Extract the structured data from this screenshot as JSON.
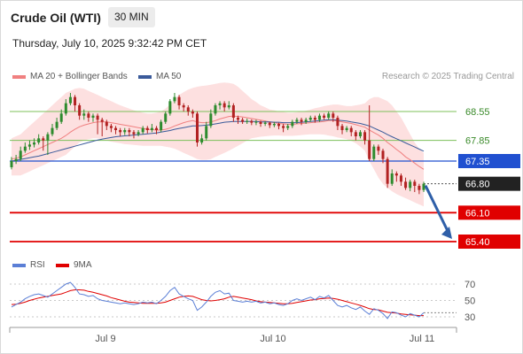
{
  "header": {
    "title": "Crude Oil (WTI)",
    "timeframe": "30 MIN",
    "datetime": "Thursday, July 10, 2025 9:32:42 PM CET"
  },
  "legend": {
    "ma20_label": "MA 20 + Bollinger Bands",
    "ma50_label": "MA 50",
    "credit": "Research © 2025 Trading Central"
  },
  "rsi_legend": {
    "rsi_label": "RSI",
    "ma_label": "9MA"
  },
  "colors": {
    "bull": "#2e8b2e",
    "bear": "#b22222",
    "ma20": "#f08080",
    "ma50": "#3a5a9a",
    "band_fill": "#fde0e0",
    "pivot": "#2050d0",
    "support": "#e00000",
    "resistance": "#7cc05a",
    "arrow": "#2f5fa8",
    "rsi": "#5b7fd6",
    "rsi_ma": "#e00000"
  },
  "chart_data": [
    {
      "type": "candlestick",
      "ylim": [
        65.2,
        69.0
      ],
      "x_ticks": [
        "Jul 9",
        "Jul 10",
        "Jul 11"
      ],
      "levels": [
        {
          "label": "68.55",
          "value": 68.55,
          "kind": "resistance"
        },
        {
          "label": "67.85",
          "value": 67.85,
          "kind": "resistance"
        },
        {
          "label": "67.35",
          "value": 67.35,
          "kind": "pivot"
        },
        {
          "label": "66.80",
          "value": 66.8,
          "kind": "last"
        },
        {
          "label": "66.10",
          "value": 66.1,
          "kind": "support"
        },
        {
          "label": "65.40",
          "value": 65.4,
          "kind": "support"
        }
      ],
      "candles": [
        [
          67.2,
          67.35,
          67.45,
          67.15
        ],
        [
          67.35,
          67.4,
          67.5,
          67.28
        ],
        [
          67.4,
          67.6,
          67.7,
          67.35
        ],
        [
          67.6,
          67.7,
          67.8,
          67.55
        ],
        [
          67.7,
          67.75,
          67.85,
          67.62
        ],
        [
          67.75,
          67.8,
          67.9,
          67.68
        ],
        [
          67.8,
          67.9,
          68.0,
          67.75
        ],
        [
          67.9,
          67.85,
          67.95,
          67.6
        ],
        [
          67.85,
          68.0,
          68.05,
          67.5
        ],
        [
          68.0,
          68.15,
          68.25,
          67.95
        ],
        [
          68.15,
          68.3,
          68.4,
          68.1
        ],
        [
          68.3,
          68.5,
          68.6,
          68.25
        ],
        [
          68.5,
          68.75,
          68.85,
          68.45
        ],
        [
          68.75,
          68.9,
          69.0,
          68.7
        ],
        [
          68.9,
          68.7,
          68.95,
          68.55
        ],
        [
          68.7,
          68.45,
          68.75,
          68.35
        ],
        [
          68.45,
          68.5,
          68.6,
          68.35
        ],
        [
          68.5,
          68.4,
          68.55,
          68.3
        ],
        [
          68.4,
          68.45,
          68.5,
          68.3
        ],
        [
          68.45,
          68.35,
          68.5,
          68.0
        ],
        [
          68.35,
          68.3,
          68.4,
          67.95
        ],
        [
          68.3,
          68.2,
          68.35,
          68.1
        ],
        [
          68.2,
          68.15,
          68.25,
          68.05
        ],
        [
          68.15,
          68.1,
          68.2,
          68.0
        ],
        [
          68.1,
          68.05,
          68.15,
          67.95
        ],
        [
          68.05,
          68.1,
          68.15,
          67.98
        ],
        [
          68.1,
          68.05,
          68.15,
          67.95
        ],
        [
          68.05,
          68.0,
          68.1,
          67.9
        ],
        [
          68.0,
          68.05,
          68.1,
          67.95
        ],
        [
          68.05,
          68.15,
          68.2,
          68.0
        ],
        [
          68.15,
          68.1,
          68.2,
          68.02
        ],
        [
          68.1,
          68.15,
          68.25,
          68.05
        ],
        [
          68.15,
          68.1,
          68.2,
          68.0
        ],
        [
          68.1,
          68.3,
          68.35,
          68.05
        ],
        [
          68.3,
          68.5,
          68.55,
          68.25
        ],
        [
          68.5,
          68.8,
          68.85,
          68.45
        ],
        [
          68.8,
          68.9,
          69.0,
          68.75
        ],
        [
          68.9,
          68.7,
          68.95,
          68.6
        ],
        [
          68.7,
          68.65,
          68.75,
          68.55
        ],
        [
          68.65,
          68.55,
          68.7,
          68.45
        ],
        [
          68.55,
          68.5,
          68.6,
          68.4
        ],
        [
          68.5,
          67.8,
          68.55,
          67.7
        ],
        [
          67.8,
          67.9,
          68.0,
          67.75
        ],
        [
          67.9,
          68.2,
          68.3,
          67.85
        ],
        [
          68.2,
          68.5,
          68.6,
          68.15
        ],
        [
          68.5,
          68.7,
          68.75,
          68.45
        ],
        [
          68.7,
          68.75,
          68.8,
          68.6
        ],
        [
          68.75,
          68.65,
          68.8,
          68.55
        ],
        [
          68.65,
          68.7,
          68.8,
          68.6
        ],
        [
          68.7,
          68.4,
          68.75,
          68.3
        ],
        [
          68.4,
          68.35,
          68.45,
          68.25
        ],
        [
          68.35,
          68.3,
          68.4,
          68.25
        ],
        [
          68.3,
          68.32,
          68.38,
          68.25
        ],
        [
          68.32,
          68.28,
          68.36,
          68.22
        ],
        [
          68.28,
          68.3,
          68.35,
          68.22
        ],
        [
          68.3,
          68.25,
          68.33,
          68.18
        ],
        [
          68.25,
          68.28,
          68.32,
          68.2
        ],
        [
          68.28,
          68.22,
          68.3,
          68.15
        ],
        [
          68.22,
          68.25,
          68.3,
          68.17
        ],
        [
          68.25,
          68.2,
          68.28,
          68.12
        ],
        [
          68.2,
          68.15,
          68.25,
          68.05
        ],
        [
          68.15,
          68.2,
          68.25,
          68.1
        ],
        [
          68.2,
          68.3,
          68.35,
          68.15
        ],
        [
          68.3,
          68.35,
          68.4,
          68.25
        ],
        [
          68.35,
          68.3,
          68.4,
          68.22
        ],
        [
          68.3,
          68.35,
          68.4,
          68.25
        ],
        [
          68.35,
          68.4,
          68.45,
          68.3
        ],
        [
          68.4,
          68.35,
          68.45,
          68.28
        ],
        [
          68.35,
          68.45,
          68.5,
          68.3
        ],
        [
          68.45,
          68.4,
          68.5,
          68.35
        ],
        [
          68.4,
          68.5,
          68.55,
          68.35
        ],
        [
          68.5,
          68.4,
          68.55,
          68.3
        ],
        [
          68.4,
          68.2,
          68.45,
          68.1
        ],
        [
          68.2,
          68.1,
          68.25,
          68.0
        ],
        [
          68.1,
          68.15,
          68.2,
          68.05
        ],
        [
          68.15,
          68.05,
          68.2,
          67.95
        ],
        [
          68.05,
          67.95,
          68.1,
          67.85
        ],
        [
          67.95,
          68.05,
          68.1,
          67.9
        ],
        [
          68.05,
          67.85,
          68.1,
          67.75
        ],
        [
          67.85,
          67.4,
          68.7,
          67.35
        ],
        [
          67.4,
          67.7,
          67.75,
          67.35
        ],
        [
          67.7,
          67.6,
          67.75,
          67.5
        ],
        [
          67.6,
          67.4,
          67.65,
          67.3
        ],
        [
          67.4,
          66.8,
          67.45,
          66.7
        ],
        [
          66.8,
          67.05,
          67.15,
          66.75
        ],
        [
          67.05,
          67.0,
          67.1,
          66.85
        ],
        [
          67.0,
          66.85,
          67.05,
          66.75
        ],
        [
          66.85,
          66.7,
          66.95,
          66.65
        ],
        [
          66.7,
          66.85,
          66.9,
          66.62
        ],
        [
          66.85,
          66.75,
          66.9,
          66.6
        ],
        [
          66.75,
          66.65,
          66.8,
          66.55
        ],
        [
          66.65,
          66.8,
          66.85,
          66.6
        ]
      ],
      "ma20": [
        67.4,
        67.42,
        67.45,
        67.5,
        67.55,
        67.6,
        67.65,
        67.7,
        67.75,
        67.8,
        67.85,
        67.9,
        67.97,
        68.05,
        68.12,
        68.18,
        68.22,
        68.25,
        68.28,
        68.3,
        68.3,
        68.3,
        68.28,
        68.26,
        68.24,
        68.22,
        68.2,
        68.18,
        68.16,
        68.14,
        68.12,
        68.11,
        68.1,
        68.1,
        68.12,
        68.15,
        68.2,
        68.24,
        68.28,
        68.31,
        68.33,
        68.3,
        68.28,
        68.28,
        68.3,
        68.33,
        68.37,
        68.4,
        68.43,
        68.44,
        68.43,
        68.42,
        68.4,
        68.38,
        68.36,
        68.34,
        68.32,
        68.3,
        68.28,
        68.26,
        68.25,
        68.24,
        68.24,
        68.25,
        68.26,
        68.27,
        68.28,
        68.29,
        68.3,
        68.31,
        68.33,
        68.33,
        68.32,
        68.3,
        68.28,
        68.26,
        68.23,
        68.2,
        68.17,
        68.1,
        68.04,
        67.98,
        67.9,
        67.8,
        67.72,
        67.63,
        67.55,
        67.45,
        67.38,
        67.3,
        67.22,
        67.15
      ],
      "ma50": [
        67.35,
        67.37,
        67.39,
        67.41,
        67.43,
        67.45,
        67.47,
        67.5,
        67.53,
        67.56,
        67.59,
        67.62,
        67.65,
        67.68,
        67.71,
        67.74,
        67.77,
        67.8,
        67.83,
        67.86,
        67.88,
        67.9,
        67.92,
        67.94,
        67.95,
        67.96,
        67.97,
        67.98,
        67.99,
        68.0,
        68.01,
        68.02,
        68.03,
        68.05,
        68.07,
        68.09,
        68.12,
        68.14,
        68.16,
        68.18,
        68.2,
        68.2,
        68.21,
        68.22,
        68.23,
        68.25,
        68.27,
        68.29,
        68.3,
        68.31,
        68.31,
        68.31,
        68.31,
        68.31,
        68.31,
        68.3,
        68.3,
        68.3,
        68.29,
        68.29,
        68.28,
        68.28,
        68.28,
        68.28,
        68.29,
        68.3,
        68.31,
        68.32,
        68.33,
        68.34,
        68.35,
        68.35,
        68.34,
        68.33,
        68.32,
        68.3,
        68.28,
        68.26,
        68.23,
        68.2,
        68.15,
        68.1,
        68.05,
        67.99,
        67.94,
        67.89,
        67.84,
        67.79,
        67.74,
        67.69,
        67.64,
        67.59
      ],
      "band_upper": [
        67.9,
        67.95,
        68.0,
        68.1,
        68.2,
        68.3,
        68.4,
        68.5,
        68.6,
        68.7,
        68.8,
        68.9,
        69.0,
        69.05,
        69.1,
        69.12,
        69.1,
        69.05,
        69.0,
        68.95,
        68.9,
        68.85,
        68.8,
        68.75,
        68.7,
        68.66,
        68.62,
        68.58,
        68.55,
        68.52,
        68.5,
        68.5,
        68.52,
        68.55,
        68.62,
        68.72,
        68.85,
        68.95,
        69.02,
        69.08,
        69.12,
        69.15,
        69.17,
        69.18,
        69.2,
        69.22,
        69.24,
        69.25,
        69.24,
        69.22,
        69.15,
        69.05,
        68.95,
        68.85,
        68.78,
        68.7,
        68.65,
        68.6,
        68.58,
        68.55,
        68.54,
        68.52,
        68.52,
        68.53,
        68.55,
        68.57,
        68.6,
        68.63,
        68.65,
        68.68,
        68.7,
        68.72,
        68.72,
        68.7,
        68.68,
        68.68,
        68.7,
        68.72,
        68.75,
        68.85,
        68.9,
        68.9,
        68.85,
        68.8,
        68.7,
        68.55,
        68.4,
        68.2,
        68.0,
        67.8,
        67.65,
        67.55
      ],
      "band_lower": [
        67.0,
        67.0,
        67.0,
        67.05,
        67.1,
        67.15,
        67.2,
        67.25,
        67.3,
        67.35,
        67.4,
        67.45,
        67.5,
        67.6,
        67.7,
        67.8,
        67.85,
        67.88,
        67.9,
        67.9,
        67.88,
        67.85,
        67.82,
        67.8,
        67.78,
        67.76,
        67.75,
        67.74,
        67.73,
        67.72,
        67.72,
        67.72,
        67.72,
        67.72,
        67.7,
        67.68,
        67.65,
        67.6,
        67.55,
        67.5,
        67.45,
        67.4,
        67.38,
        67.38,
        67.4,
        67.45,
        67.5,
        67.55,
        67.6,
        67.66,
        67.72,
        67.78,
        67.85,
        67.9,
        67.92,
        67.94,
        67.95,
        67.96,
        67.97,
        67.97,
        67.96,
        67.96,
        67.96,
        67.97,
        67.98,
        67.99,
        68.0,
        68.0,
        68.0,
        67.99,
        67.97,
        67.95,
        67.92,
        67.9,
        67.88,
        67.84,
        67.78,
        67.7,
        67.6,
        67.35,
        67.15,
        66.95,
        66.8,
        66.7,
        66.62,
        66.55,
        66.5,
        66.45,
        66.4,
        66.35,
        66.3,
        66.25
      ],
      "forecast": {
        "from": 66.8,
        "to": 65.4
      }
    },
    {
      "type": "line",
      "ylim": [
        20,
        80
      ],
      "y_ticks": [
        "70",
        "50",
        "30"
      ],
      "rsi": [
        42,
        45,
        48,
        52,
        55,
        57,
        58,
        56,
        54,
        58,
        62,
        66,
        70,
        72,
        66,
        58,
        57,
        55,
        56,
        52,
        50,
        49,
        48,
        47,
        46,
        47,
        46,
        45,
        46,
        48,
        47,
        48,
        46,
        50,
        55,
        62,
        66,
        58,
        55,
        52,
        50,
        38,
        42,
        48,
        55,
        60,
        62,
        58,
        59,
        50,
        49,
        48,
        49,
        48,
        49,
        47,
        48,
        46,
        47,
        45,
        44,
        46,
        50,
        52,
        50,
        52,
        54,
        51,
        55,
        53,
        56,
        50,
        44,
        42,
        44,
        41,
        39,
        42,
        37,
        33,
        40,
        38,
        34,
        28,
        36,
        35,
        32,
        30,
        34,
        32,
        30,
        35
      ],
      "ma9": [
        45,
        45.5,
        46.5,
        48,
        50,
        51.5,
        53,
        54,
        55,
        56,
        57,
        58,
        60,
        62,
        63,
        63,
        62.5,
        61,
        60,
        58.5,
        57,
        55.5,
        53.5,
        52,
        50.5,
        49,
        48,
        47.5,
        47,
        46.5,
        46.5,
        46.5,
        46.5,
        47,
        48,
        50,
        52,
        54,
        55,
        55.5,
        55,
        53,
        51,
        50,
        49.5,
        50,
        51,
        52,
        54,
        55,
        54,
        53,
        52,
        51,
        49.5,
        48.5,
        48,
        47.5,
        47,
        46.5,
        46,
        46,
        46.5,
        47.5,
        48.5,
        49.5,
        50.5,
        51,
        52,
        52.5,
        53,
        52.5,
        51.5,
        50,
        48.5,
        47,
        45.5,
        44,
        42,
        40,
        39,
        38.5,
        37,
        35.5,
        35,
        34.5,
        33.5,
        33,
        32.5,
        32,
        31.5,
        31.5
      ]
    }
  ]
}
